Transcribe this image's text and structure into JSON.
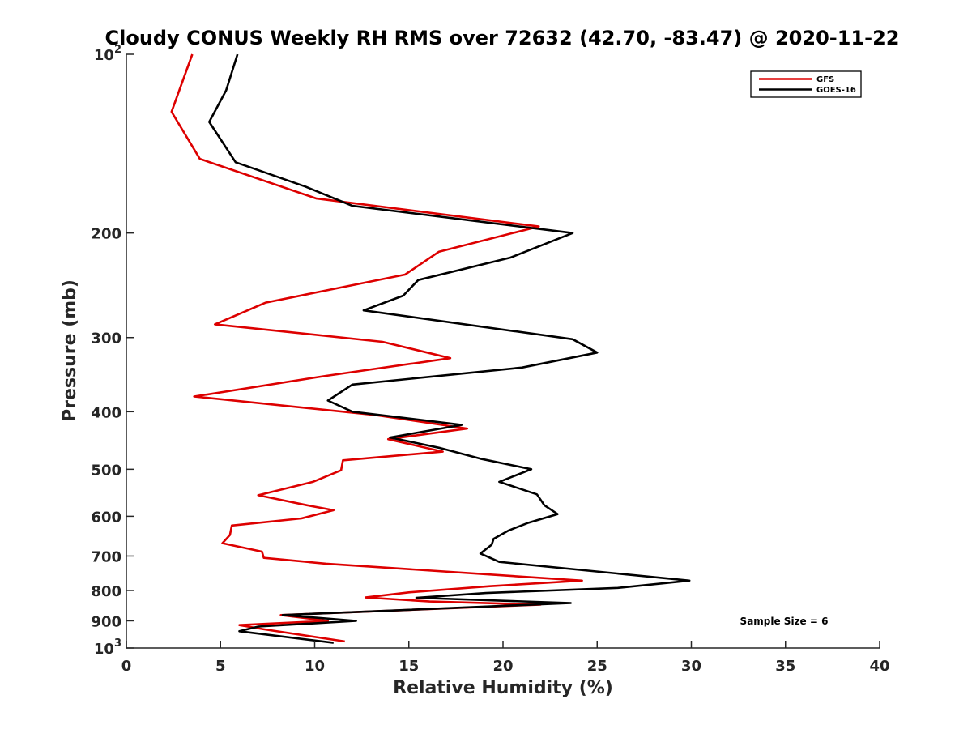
{
  "chart_data": {
    "type": "line",
    "title": "Cloudy CONUS Weekly RH RMS over 72632 (42.70, -83.47) @ 2020-11-22",
    "xlabel": "Relative Humidity (%)",
    "ylabel": "Pressure (mb)",
    "xlim": [
      0,
      40
    ],
    "ylim": [
      100,
      1000
    ],
    "y_scale": "log",
    "y_reversed": true,
    "x_ticks": [
      "0",
      "5",
      "10",
      "15",
      "20",
      "25",
      "30",
      "35",
      "40"
    ],
    "y_ticks": [
      {
        "value": 100,
        "base": "10",
        "exp": "2"
      },
      {
        "value": 200,
        "label": "200"
      },
      {
        "value": 300,
        "label": "300"
      },
      {
        "value": 400,
        "label": "400"
      },
      {
        "value": 500,
        "label": "500"
      },
      {
        "value": 600,
        "label": "600"
      },
      {
        "value": 700,
        "label": "700"
      },
      {
        "value": 800,
        "label": "800"
      },
      {
        "value": 900,
        "label": "900"
      },
      {
        "value": 1000,
        "base": "10",
        "exp": "3"
      }
    ],
    "grid": false,
    "legend_position": "top-right",
    "annotation": "Sample Size = 6",
    "series": [
      {
        "name": "GFS",
        "color": "#dd0000",
        "points": [
          [
            3.5,
            100
          ],
          [
            2.4,
            125
          ],
          [
            3.9,
            150
          ],
          [
            10.1,
            175
          ],
          [
            21.9,
            195
          ],
          [
            16.6,
            215
          ],
          [
            14.8,
            235
          ],
          [
            7.4,
            262
          ],
          [
            4.7,
            285
          ],
          [
            13.6,
            305
          ],
          [
            17.2,
            325
          ],
          [
            10.6,
            348
          ],
          [
            3.6,
            377
          ],
          [
            13.2,
            405
          ],
          [
            18.1,
            427
          ],
          [
            13.9,
            445
          ],
          [
            16.8,
            467
          ],
          [
            11.5,
            483
          ],
          [
            11.4,
            502
          ],
          [
            9.9,
            525
          ],
          [
            7.0,
            553
          ],
          [
            9.6,
            575
          ],
          [
            11.0,
            586
          ],
          [
            9.3,
            605
          ],
          [
            5.6,
            622
          ],
          [
            5.5,
            645
          ],
          [
            5.1,
            666
          ],
          [
            7.2,
            688
          ],
          [
            7.3,
            705
          ],
          [
            10.6,
            721
          ],
          [
            24.2,
            770
          ],
          [
            19.3,
            787
          ],
          [
            15.0,
            806
          ],
          [
            12.7,
            822
          ],
          [
            16.1,
            835
          ],
          [
            22.0,
            845
          ],
          [
            8.2,
            880
          ],
          [
            10.7,
            900
          ],
          [
            6.0,
            915
          ],
          [
            7.3,
            930
          ],
          [
            11.6,
            975
          ]
        ]
      },
      {
        "name": "GOES-16",
        "color": "#000000",
        "points": [
          [
            5.9,
            100
          ],
          [
            5.3,
            115
          ],
          [
            4.4,
            130
          ],
          [
            5.8,
            152
          ],
          [
            9.5,
            167
          ],
          [
            12.0,
            180
          ],
          [
            23.7,
            200
          ],
          [
            20.4,
            220
          ],
          [
            15.5,
            240
          ],
          [
            14.7,
            255
          ],
          [
            12.6,
            270
          ],
          [
            23.7,
            302
          ],
          [
            25.0,
            318
          ],
          [
            21.0,
            337
          ],
          [
            12.0,
            360
          ],
          [
            10.7,
            383
          ],
          [
            12.0,
            400
          ],
          [
            17.8,
            421
          ],
          [
            14.0,
            442
          ],
          [
            16.6,
            460
          ],
          [
            18.8,
            480
          ],
          [
            21.5,
            500
          ],
          [
            19.8,
            525
          ],
          [
            21.8,
            551
          ],
          [
            22.2,
            575
          ],
          [
            22.9,
            595
          ],
          [
            21.3,
            616
          ],
          [
            20.3,
            634
          ],
          [
            19.5,
            655
          ],
          [
            19.4,
            670
          ],
          [
            18.8,
            693
          ],
          [
            19.8,
            716
          ],
          [
            29.9,
            770
          ],
          [
            26.1,
            792
          ],
          [
            19.1,
            808
          ],
          [
            15.4,
            823
          ],
          [
            23.6,
            840
          ],
          [
            8.3,
            880
          ],
          [
            12.2,
            900
          ],
          [
            7.0,
            920
          ],
          [
            6.0,
            937
          ],
          [
            11.0,
            980
          ]
        ]
      }
    ]
  }
}
